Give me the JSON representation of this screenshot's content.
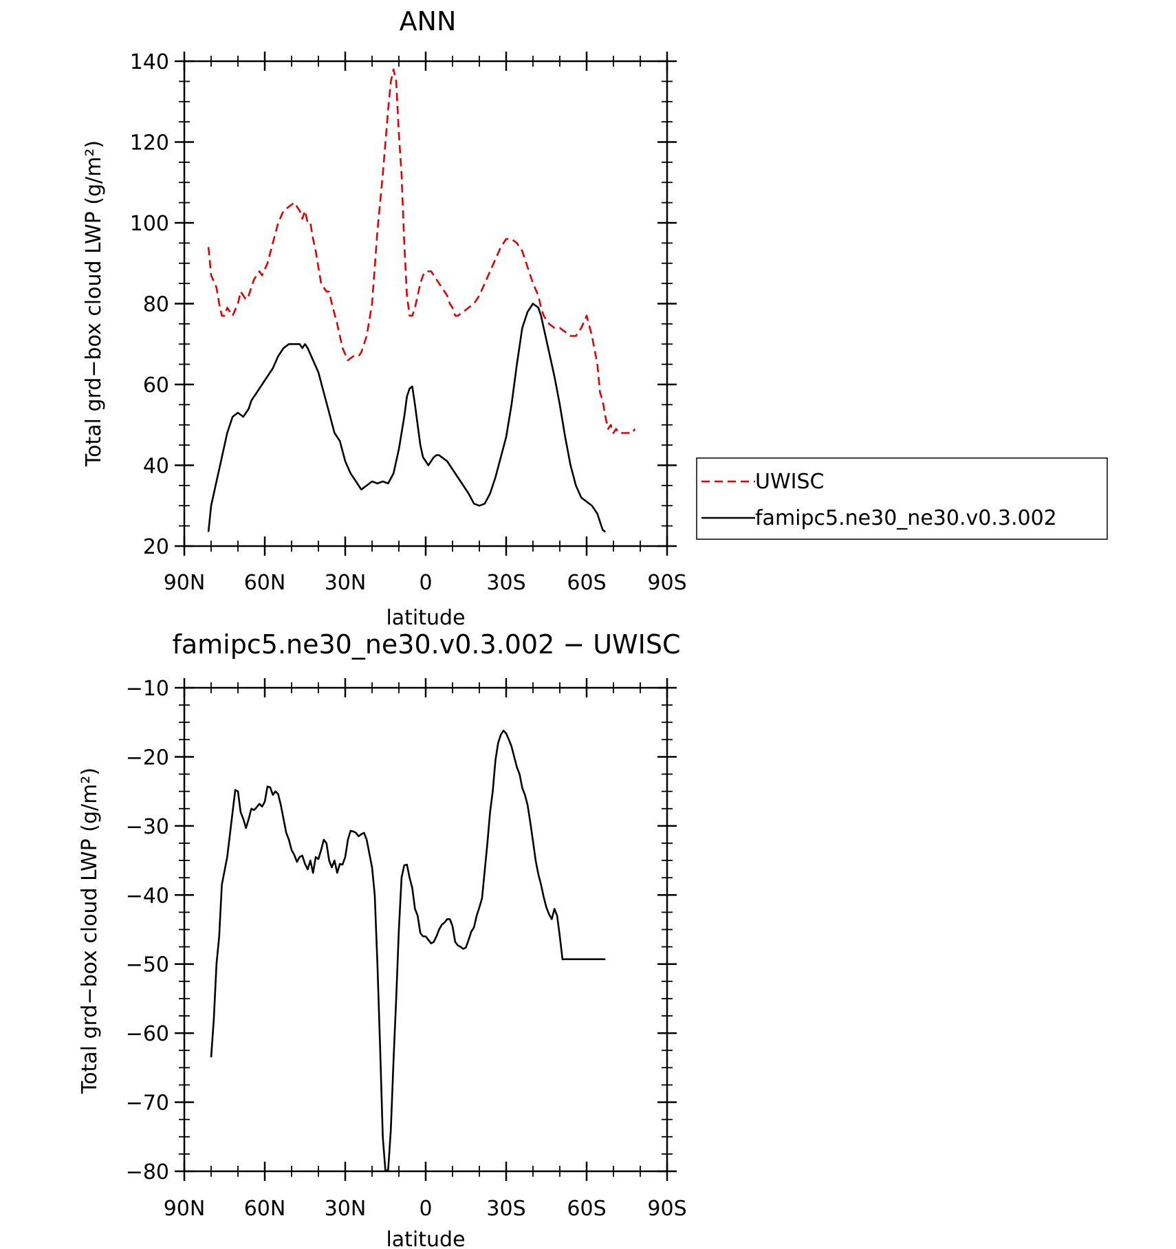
{
  "chart_data": [
    {
      "type": "line",
      "title": "ANN",
      "xlabel": "latitude",
      "ylabel": "Total grd−box cloud LWP (g/m²)",
      "xlim": [
        90,
        -90
      ],
      "ylim": [
        20,
        140
      ],
      "xticks": [
        90,
        60,
        30,
        0,
        -30,
        -60,
        -90
      ],
      "xtick_labels": [
        "90N",
        "60N",
        "30N",
        "0",
        "30S",
        "60S",
        "90S"
      ],
      "yticks": [
        20,
        40,
        60,
        80,
        100,
        120,
        140
      ],
      "ytick_labels": [
        "20",
        "40",
        "60",
        "80",
        "100",
        "120",
        "140"
      ],
      "legend_position": "right",
      "series": [
        {
          "name": "UWISC",
          "color": "#e00000",
          "dash": "dashed",
          "x": [
            81,
            80,
            78,
            77,
            76,
            75,
            74,
            72,
            70,
            69,
            67,
            66,
            64,
            62,
            61,
            59,
            57,
            55,
            53,
            51,
            49,
            47,
            46,
            45,
            44,
            43,
            42,
            41,
            39,
            37,
            36,
            35,
            33,
            31,
            29,
            27,
            25,
            24,
            22,
            20,
            18,
            16,
            14,
            13,
            12,
            11,
            10,
            9,
            8,
            7,
            6,
            5,
            4,
            3,
            2,
            1,
            0,
            -1,
            -2,
            -3,
            -4,
            -5,
            -6,
            -7,
            -8,
            -9,
            -10,
            -11,
            -12,
            -14,
            -16,
            -18,
            -20,
            -22,
            -24,
            -26,
            -28,
            -30,
            -32,
            -34,
            -36,
            -38,
            -40,
            -42,
            -43,
            -44,
            -46,
            -48,
            -50,
            -52,
            -54,
            -56,
            -58,
            -60,
            -62,
            -64,
            -65,
            -66,
            -67,
            -68,
            -69,
            -70,
            -71,
            -72,
            -73,
            -74,
            -75,
            -76,
            -77,
            -78
          ],
          "y": [
            94,
            87,
            84,
            80,
            77,
            77,
            79,
            77,
            80,
            83,
            81,
            82,
            86,
            88,
            87,
            90,
            95,
            100,
            103,
            104,
            105,
            103,
            101,
            103,
            100,
            100,
            96,
            93,
            85,
            83,
            83,
            80,
            75,
            69,
            66,
            67,
            67,
            68,
            72,
            80,
            98,
            112,
            128,
            135,
            138,
            135,
            122,
            112,
            95,
            82,
            77,
            77,
            79,
            82,
            85,
            87,
            88,
            88,
            88,
            87,
            86,
            85,
            84,
            83,
            82,
            80,
            79,
            77,
            77,
            78,
            79,
            80,
            82,
            85,
            88,
            91,
            94,
            96,
            96,
            95,
            93,
            89,
            85,
            82,
            79,
            77,
            75,
            74,
            74,
            73,
            72,
            72,
            74,
            77,
            72,
            65,
            58,
            56,
            52,
            49,
            50,
            48,
            49,
            48,
            48,
            48,
            48,
            48,
            48,
            49
          ]
        },
        {
          "name": "famipc5.ne30_ne30.v0.3.002",
          "color": "#000000",
          "dash": "solid",
          "x": [
            81,
            80,
            78,
            76,
            74,
            72,
            70,
            68,
            66,
            65,
            63,
            61,
            59,
            58,
            57,
            55,
            53,
            51,
            49,
            47,
            46,
            45,
            44,
            42,
            40,
            38,
            36,
            34,
            32,
            30,
            28,
            26,
            24,
            22,
            20,
            18,
            16,
            14,
            12,
            10,
            9,
            8,
            7,
            6,
            5,
            4,
            3,
            2,
            1,
            0,
            -1,
            -2,
            -3,
            -4,
            -5,
            -6,
            -7,
            -8,
            -9,
            -10,
            -12,
            -14,
            -16,
            -18,
            -20,
            -22,
            -24,
            -26,
            -28,
            -30,
            -32,
            -34,
            -36,
            -38,
            -40,
            -42,
            -43,
            -44,
            -46,
            -48,
            -50,
            -52,
            -54,
            -56,
            -58,
            -60,
            -62,
            -63,
            -64,
            -65,
            -66,
            -67
          ],
          "y": [
            23.5,
            30,
            36,
            42,
            48,
            52,
            53,
            52,
            54,
            56,
            58,
            60,
            62,
            63,
            64,
            67,
            69,
            70,
            70,
            70,
            69,
            70,
            69,
            66,
            63,
            58,
            53,
            48,
            46,
            41,
            38,
            36,
            34,
            35,
            36,
            35.5,
            36,
            35.5,
            38,
            44,
            48,
            52,
            57,
            59,
            59.5,
            55,
            50,
            45,
            42,
            41,
            40,
            41,
            42,
            42.5,
            42.5,
            42,
            41.5,
            41,
            40,
            39,
            37,
            35,
            33,
            30.5,
            30,
            30.5,
            33,
            37,
            42,
            47,
            55,
            65,
            74,
            78,
            80,
            79,
            77,
            74,
            68,
            62,
            55,
            47,
            40,
            35,
            32,
            31,
            30,
            29,
            28,
            26,
            24,
            23.5
          ]
        }
      ]
    },
    {
      "type": "line",
      "title": "famipc5.ne30_ne30.v0.3.002 − UWISC",
      "xlabel": "latitude",
      "ylabel": "Total grd−box cloud LWP (g/m²)",
      "xlim": [
        90,
        -90
      ],
      "ylim": [
        -80,
        -10
      ],
      "xticks": [
        90,
        60,
        30,
        0,
        -30,
        -60,
        -90
      ],
      "xtick_labels": [
        "90N",
        "60N",
        "30N",
        "0",
        "30S",
        "60S",
        "90S"
      ],
      "yticks": [
        -80,
        -70,
        -60,
        -50,
        -40,
        -30,
        -20,
        -10
      ],
      "ytick_labels": [
        "−80",
        "−70",
        "−60",
        "−50",
        "−40",
        "−30",
        "−20",
        "−10"
      ],
      "series": [
        {
          "color": "#000000",
          "dash": "solid",
          "x": [
            80,
            79,
            78,
            77,
            76,
            75,
            74,
            72,
            71,
            70,
            69,
            68,
            67,
            66,
            65,
            64,
            63,
            62,
            61,
            60,
            59,
            58,
            57,
            56,
            55,
            54,
            52,
            51,
            50,
            49,
            48,
            47,
            46,
            45,
            44,
            43,
            42,
            41,
            40,
            39,
            38,
            37,
            36,
            35,
            34,
            33,
            32,
            31,
            30,
            29,
            28,
            27,
            26,
            25,
            24,
            23,
            22,
            21,
            20,
            19,
            18,
            17,
            16,
            15,
            14,
            13,
            12,
            11,
            10,
            9,
            8,
            7,
            6,
            5,
            4,
            3,
            2,
            1,
            0,
            -1,
            -2,
            -3,
            -4,
            -5,
            -6,
            -7,
            -8,
            -9,
            -10,
            -11,
            -12,
            -13,
            -14,
            -15,
            -16,
            -17,
            -18,
            -19,
            -20,
            -21,
            -22,
            -23,
            -24,
            -25,
            -26,
            -27,
            -28,
            -29,
            -30,
            -31,
            -32,
            -33,
            -34,
            -35,
            -36,
            -37,
            -38,
            -39,
            -40,
            -41,
            -42,
            -43,
            -44,
            -45,
            -46,
            -47,
            -48,
            -49,
            -50,
            -51,
            -52,
            -53,
            -54,
            -55,
            -56,
            -57,
            -58,
            -59,
            -60,
            -61,
            -62,
            -63,
            -64,
            -65,
            -66,
            -67
          ],
          "y": [
            -63.5,
            -58,
            -50,
            -46,
            -38.5,
            -36.5,
            -34.5,
            -28,
            -24.8,
            -25,
            -28,
            -29,
            -30.3,
            -29,
            -27.5,
            -27.7,
            -27.3,
            -26.8,
            -27.2,
            -26.5,
            -24.3,
            -24.4,
            -25.5,
            -25,
            -25.4,
            -27,
            -31,
            -32,
            -33.5,
            -34.2,
            -35.2,
            -34.5,
            -34.3,
            -35.5,
            -36.3,
            -35,
            -36.8,
            -34.5,
            -34.8,
            -33.5,
            -32,
            -32.5,
            -35,
            -36,
            -35,
            -36.8,
            -35.5,
            -35.6,
            -34.5,
            -32,
            -30.7,
            -30.8,
            -31,
            -31.5,
            -31.2,
            -31,
            -32,
            -34,
            -36,
            -40,
            -50,
            -62,
            -75,
            -80,
            -79.8,
            -74,
            -64,
            -55,
            -45,
            -37.5,
            -35.7,
            -35.6,
            -37.5,
            -39,
            -42,
            -43,
            -45.5,
            -46,
            -46,
            -46.5,
            -47,
            -46.8,
            -46,
            -45,
            -44.3,
            -44,
            -43.5,
            -43.5,
            -44.5,
            -46.8,
            -47.3,
            -47.5,
            -47.8,
            -47.6,
            -46.5,
            -45.3,
            -44.7,
            -43,
            -41.8,
            -40.5,
            -36.5,
            -32.5,
            -28,
            -25,
            -20.5,
            -18,
            -16.8,
            -16.2,
            -16.6,
            -17.5,
            -18.5,
            -20,
            -21.5,
            -22.5,
            -24.5,
            -25.5,
            -27,
            -29.5,
            -32.2,
            -35,
            -37,
            -38.5,
            -40.3,
            -41.8,
            -42.8,
            -43.5,
            -42,
            -43,
            -46,
            -49.3,
            -49.3,
            -49.3,
            -49.3,
            -49.3,
            -49.3,
            -49.3,
            -49.3,
            -49.3,
            -49.3,
            -49.3,
            -49.3,
            -49.3,
            -49.3,
            -49.3,
            -49.3,
            -49.3
          ]
        }
      ]
    }
  ],
  "legend": {
    "items": [
      {
        "label": "UWISC",
        "color": "#e00000",
        "dash": "dashed"
      },
      {
        "label": "famipc5.ne30_ne30.v0.3.002",
        "color": "#000000",
        "dash": "solid"
      }
    ]
  }
}
